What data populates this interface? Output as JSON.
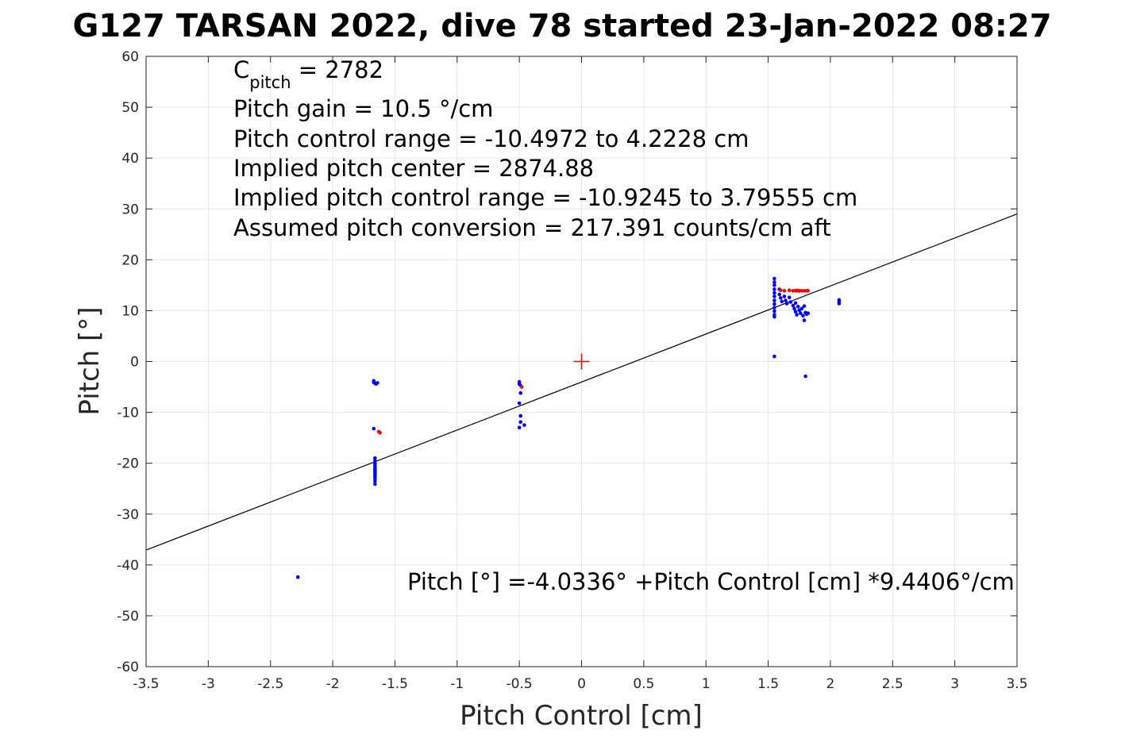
{
  "chart_data": {
    "type": "scatter",
    "title": "G127 TARSAN 2022, dive 78 started 23-Jan-2022 08:27",
    "xlabel": "Pitch Control [cm]",
    "ylabel": "Pitch [°]",
    "xlim": [
      -3.5,
      3.5
    ],
    "ylim": [
      -60,
      60
    ],
    "xticks": [
      "-3.5",
      "-3",
      "-2.5",
      "-2",
      "-1.5",
      "-1",
      "-0.5",
      "0",
      "0.5",
      "1",
      "1.5",
      "2",
      "2.5",
      "3",
      "3.5"
    ],
    "yticks": [
      "60",
      "50",
      "40",
      "30",
      "20",
      "10",
      "0",
      "-10",
      "-20",
      "-30",
      "-40",
      "-50",
      "-60"
    ],
    "grid": true,
    "annotations": {
      "cpitch_main": "C",
      "cpitch_sub": "pitch",
      "cpitch_value": " = 2782",
      "lines": [
        "Pitch gain = 10.5 °/cm",
        "Pitch control range = -10.4972 to 4.2228 cm",
        "Implied pitch center = 2874.88",
        "Implied pitch control range = -10.9245 to 3.79555 cm",
        "Assumed pitch conversion = 217.391 counts/cm aft"
      ],
      "fit_equation": "Pitch [°] =-4.0336° +Pitch Control [cm] *9.4406°/cm"
    },
    "fit_line": {
      "intercept": -4.0336,
      "slope": 9.4406,
      "color": "#000000"
    },
    "center_marker": {
      "x": 0,
      "y": 0,
      "color": "#ff0000"
    },
    "series": [
      {
        "color": "#0000ff",
        "points": [
          [
            -2.28,
            -42.4
          ],
          [
            -1.67,
            -3.8
          ],
          [
            -1.67,
            -4.1
          ],
          [
            -1.66,
            -4.3
          ],
          [
            -1.65,
            -4.4
          ],
          [
            -1.64,
            -4.2
          ],
          [
            -1.67,
            -13.2
          ],
          [
            -1.66,
            -19.0
          ],
          [
            -1.66,
            -19.5
          ],
          [
            -1.66,
            -20.0
          ],
          [
            -1.66,
            -20.4
          ],
          [
            -1.66,
            -20.8
          ],
          [
            -1.66,
            -21.1
          ],
          [
            -1.66,
            -21.4
          ],
          [
            -1.66,
            -21.7
          ],
          [
            -1.66,
            -22.0
          ],
          [
            -1.66,
            -22.3
          ],
          [
            -1.66,
            -22.6
          ],
          [
            -1.66,
            -23.0
          ],
          [
            -1.66,
            -23.5
          ],
          [
            -1.66,
            -24.1
          ],
          [
            -0.5,
            -4.0
          ],
          [
            -0.5,
            -4.4
          ],
          [
            -0.49,
            -4.7
          ],
          [
            -0.49,
            -6.2
          ],
          [
            -0.5,
            -8.2
          ],
          [
            -0.49,
            -10.7
          ],
          [
            -0.49,
            -11.9
          ],
          [
            -0.46,
            -12.5
          ],
          [
            -0.5,
            -13.0
          ],
          [
            1.55,
            1.0
          ],
          [
            1.55,
            16.3
          ],
          [
            1.55,
            15.6
          ],
          [
            1.55,
            15.0
          ],
          [
            1.55,
            14.2
          ],
          [
            1.55,
            13.5
          ],
          [
            1.55,
            12.8
          ],
          [
            1.55,
            12.0
          ],
          [
            1.55,
            11.3
          ],
          [
            1.55,
            10.6
          ],
          [
            1.55,
            9.9
          ],
          [
            1.55,
            9.2
          ],
          [
            1.55,
            8.8
          ],
          [
            1.59,
            14.2
          ],
          [
            1.59,
            13.2
          ],
          [
            1.6,
            12.5
          ],
          [
            1.61,
            11.8
          ],
          [
            1.63,
            12.8
          ],
          [
            1.64,
            12.0
          ],
          [
            1.65,
            11.4
          ],
          [
            1.67,
            12.6
          ],
          [
            1.68,
            11.7
          ],
          [
            1.7,
            11.0
          ],
          [
            1.71,
            10.4
          ],
          [
            1.72,
            11.5
          ],
          [
            1.72,
            9.8
          ],
          [
            1.73,
            9.2
          ],
          [
            1.74,
            10.8
          ],
          [
            1.75,
            10.1
          ],
          [
            1.76,
            9.5
          ],
          [
            1.77,
            10.4
          ],
          [
            1.78,
            9.0
          ],
          [
            1.79,
            8.1
          ],
          [
            1.8,
            9.6
          ],
          [
            1.81,
            9.3
          ],
          [
            1.82,
            9.5
          ],
          [
            1.79,
            10.9
          ],
          [
            1.8,
            -2.9
          ],
          [
            2.07,
            11.4
          ],
          [
            2.07,
            11.8
          ],
          [
            2.07,
            12.1
          ]
        ]
      },
      {
        "color": "#ff0000",
        "points": [
          [
            -1.62,
            -14.0
          ],
          [
            -1.63,
            -13.8
          ],
          [
            -0.48,
            -5.0
          ],
          [
            1.6,
            14.0
          ],
          [
            1.63,
            13.9
          ],
          [
            1.67,
            14.0
          ],
          [
            1.7,
            13.9
          ],
          [
            1.72,
            13.9
          ],
          [
            1.73,
            14.0
          ],
          [
            1.74,
            13.9
          ],
          [
            1.75,
            13.9
          ],
          [
            1.77,
            13.9
          ],
          [
            1.79,
            13.9
          ],
          [
            1.81,
            13.9
          ],
          [
            1.82,
            13.9
          ]
        ]
      }
    ]
  }
}
